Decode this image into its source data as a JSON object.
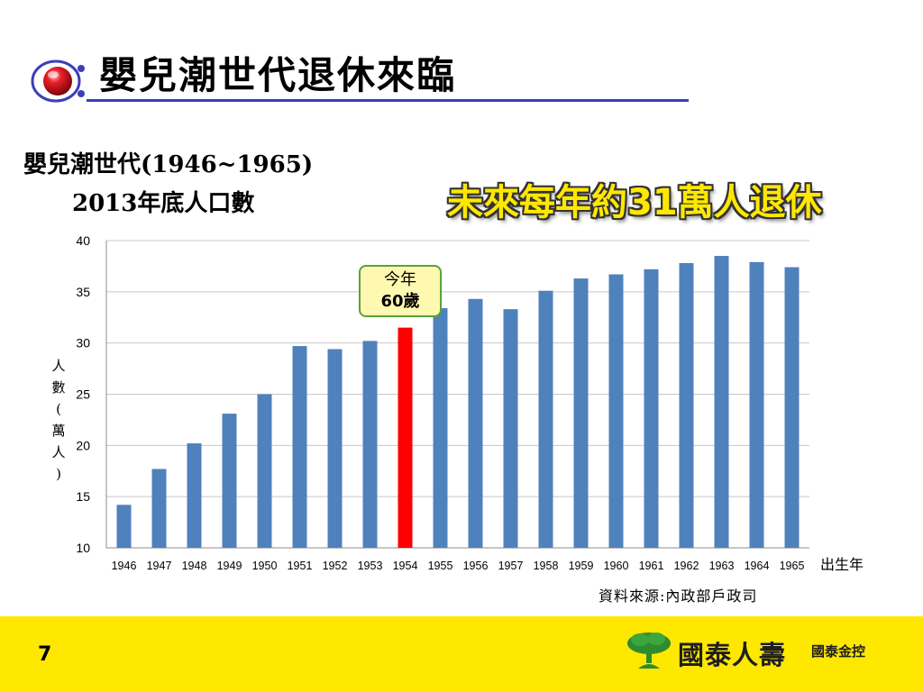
{
  "slide": {
    "title": "嬰兒潮世代退休來臨",
    "subtitle_line1": "嬰兒潮世代(1946~1965)",
    "subtitle_line2": "2013年底人口數",
    "highlight": "未來每年約31萬人退休",
    "callout_line1": "今年",
    "callout_line2": "60歲",
    "source": "資料來源:內政部戶政司",
    "page_number": "7",
    "footer_brand": "國泰人壽",
    "footer_holding": "國泰金控"
  },
  "colors": {
    "bar": "#4f81bd",
    "highlight_bar": "#ff0000",
    "footer_bg": "#ffe800",
    "title_underline": "#3c3fb8",
    "logo_green": "#2e8b2e"
  },
  "chart_data": {
    "type": "bar",
    "categories": [
      "1946",
      "1947",
      "1948",
      "1949",
      "1950",
      "1951",
      "1952",
      "1953",
      "1954",
      "1955",
      "1956",
      "1957",
      "1958",
      "1959",
      "1960",
      "1961",
      "1962",
      "1963",
      "1964",
      "1965"
    ],
    "values": [
      14.2,
      17.7,
      20.2,
      23.1,
      25.0,
      29.7,
      29.4,
      30.2,
      31.5,
      33.4,
      34.3,
      33.3,
      35.1,
      36.3,
      36.7,
      37.2,
      37.8,
      38.5,
      37.9,
      37.4
    ],
    "highlight_category": "1954",
    "ylabel": "人數(萬人)",
    "xlabel": "出生年",
    "ylim": [
      10,
      40
    ],
    "yticks": [
      10,
      15,
      20,
      25,
      30,
      35,
      40
    ],
    "grid": true,
    "legend": "none"
  }
}
